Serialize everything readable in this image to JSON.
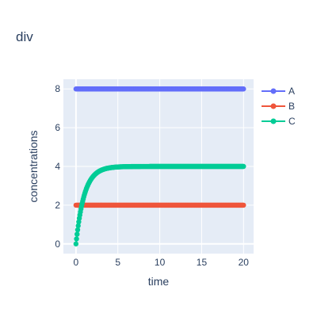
{
  "chart_data": {
    "type": "line",
    "title": "div",
    "xlabel": "time",
    "ylabel": "concentrations",
    "xlim": [
      -1.5,
      21.2
    ],
    "ylim": [
      -0.5,
      8.5
    ],
    "x_ticks": [
      0,
      5,
      10,
      15,
      20
    ],
    "y_ticks": [
      0,
      2,
      4,
      6,
      8
    ],
    "grid": true,
    "legend_position": "top-right",
    "marker_mode": "lines+markers",
    "series": [
      {
        "name": "A",
        "color": "#636efa",
        "kind": "constant",
        "x_range": [
          0,
          20
        ],
        "value": 8
      },
      {
        "name": "B",
        "color": "#ef553b",
        "kind": "constant",
        "x_range": [
          0,
          20
        ],
        "value": 2
      },
      {
        "name": "C",
        "color": "#00cc96",
        "kind": "saturating",
        "x_range": [
          0,
          20
        ],
        "y0": 0,
        "plateau": 4,
        "rate": 1.0
      }
    ]
  }
}
